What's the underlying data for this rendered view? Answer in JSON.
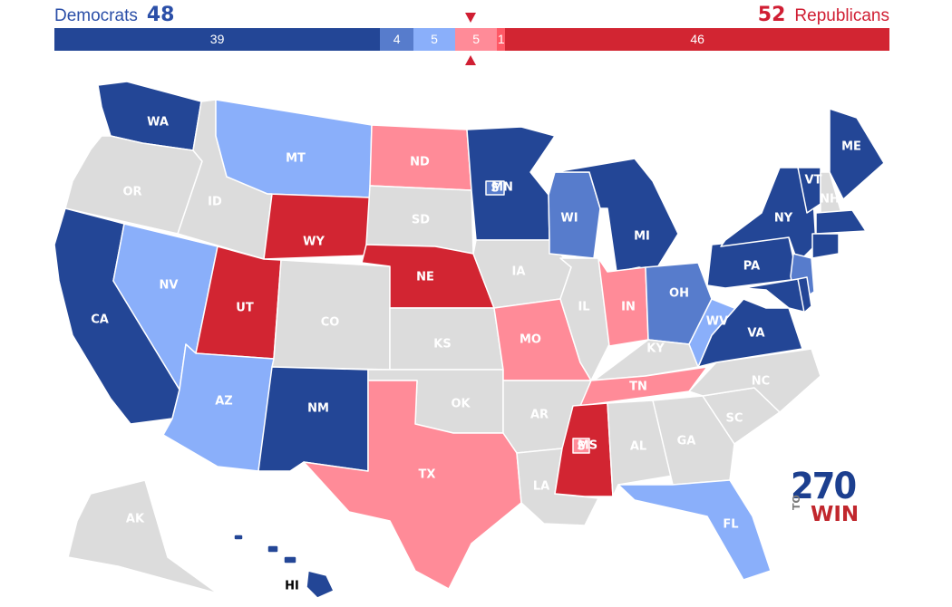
{
  "header": {
    "dem_label": "Democrats",
    "dem_total": "48",
    "rep_total": "52",
    "rep_label": "Republicans"
  },
  "colors": {
    "safe_dem": "#234696",
    "likely_dem": "#577ccc",
    "lean_dem": "#8aaffa",
    "tossup": "#dcdcdc",
    "lean_rep": "#ff8b98",
    "likely_rep": "#ff5865",
    "safe_rep": "#d22532",
    "text_dem": "#2b4fa8",
    "text_rep": "#d01e33"
  },
  "bar": [
    {
      "value": 39,
      "label": "39",
      "rating": "safe_dem"
    },
    {
      "value": 4,
      "label": "4",
      "rating": "likely_dem"
    },
    {
      "value": 5,
      "label": "5",
      "rating": "lean_dem"
    },
    {
      "value": 5,
      "label": "5",
      "rating": "lean_rep"
    },
    {
      "value": 1,
      "label": "1",
      "rating": "likely_rep"
    },
    {
      "value": 46,
      "label": "46",
      "rating": "safe_rep"
    }
  ],
  "states": [
    {
      "code": "WA",
      "label": "WA",
      "rating": "safe_dem"
    },
    {
      "code": "OR",
      "label": "OR",
      "rating": "tossup"
    },
    {
      "code": "CA",
      "label": "CA",
      "rating": "safe_dem"
    },
    {
      "code": "ID",
      "label": "ID",
      "rating": "tossup"
    },
    {
      "code": "NV",
      "label": "NV",
      "rating": "lean_dem"
    },
    {
      "code": "MT",
      "label": "MT",
      "rating": "lean_dem"
    },
    {
      "code": "WY",
      "label": "WY",
      "rating": "safe_rep"
    },
    {
      "code": "UT",
      "label": "UT",
      "rating": "safe_rep"
    },
    {
      "code": "AZ",
      "label": "AZ",
      "rating": "lean_dem"
    },
    {
      "code": "CO",
      "label": "CO",
      "rating": "tossup"
    },
    {
      "code": "NM",
      "label": "NM",
      "rating": "safe_dem"
    },
    {
      "code": "ND",
      "label": "ND",
      "rating": "lean_rep"
    },
    {
      "code": "SD",
      "label": "SD",
      "rating": "tossup"
    },
    {
      "code": "NE",
      "label": "NE",
      "rating": "safe_rep"
    },
    {
      "code": "KS",
      "label": "KS",
      "rating": "tossup"
    },
    {
      "code": "OK",
      "label": "OK",
      "rating": "tossup"
    },
    {
      "code": "TX",
      "label": "TX",
      "rating": "lean_rep"
    },
    {
      "code": "MN",
      "label": "MN",
      "rating": "safe_dem"
    },
    {
      "code": "IA",
      "label": "IA",
      "rating": "tossup"
    },
    {
      "code": "MO",
      "label": "MO",
      "rating": "lean_rep"
    },
    {
      "code": "AR",
      "label": "AR",
      "rating": "tossup"
    },
    {
      "code": "LA",
      "label": "LA",
      "rating": "tossup"
    },
    {
      "code": "WI",
      "label": "WI",
      "rating": "likely_dem"
    },
    {
      "code": "IL",
      "label": "IL",
      "rating": "tossup"
    },
    {
      "code": "MI",
      "label": "MI",
      "rating": "safe_dem"
    },
    {
      "code": "IN",
      "label": "IN",
      "rating": "lean_rep"
    },
    {
      "code": "OH",
      "label": "OH",
      "rating": "likely_dem"
    },
    {
      "code": "KY",
      "label": "KY",
      "rating": "tossup"
    },
    {
      "code": "TN",
      "label": "TN",
      "rating": "lean_rep"
    },
    {
      "code": "MS",
      "label": "MS",
      "rating": "safe_rep"
    },
    {
      "code": "AL",
      "label": "AL",
      "rating": "tossup"
    },
    {
      "code": "GA",
      "label": "GA",
      "rating": "tossup"
    },
    {
      "code": "FL",
      "label": "FL",
      "rating": "lean_dem"
    },
    {
      "code": "SC",
      "label": "SC",
      "rating": "tossup"
    },
    {
      "code": "NC",
      "label": "NC",
      "rating": "tossup"
    },
    {
      "code": "VA",
      "label": "VA",
      "rating": "safe_dem"
    },
    {
      "code": "WV",
      "label": "WV",
      "rating": "lean_dem"
    },
    {
      "code": "PA",
      "label": "PA",
      "rating": "safe_dem"
    },
    {
      "code": "NY",
      "label": "NY",
      "rating": "safe_dem"
    },
    {
      "code": "VT",
      "label": "VT",
      "rating": "safe_dem"
    },
    {
      "code": "NH",
      "label": "NH",
      "rating": "tossup"
    },
    {
      "code": "ME",
      "label": "ME",
      "rating": "safe_dem"
    },
    {
      "code": "MA",
      "label": "",
      "rating": "safe_dem"
    },
    {
      "code": "CT",
      "label": "",
      "rating": "safe_dem"
    },
    {
      "code": "NJ",
      "label": "",
      "rating": "likely_dem"
    },
    {
      "code": "MD",
      "label": "",
      "rating": "safe_dem"
    },
    {
      "code": "DE",
      "label": "",
      "rating": "safe_dem"
    },
    {
      "code": "AK",
      "label": "AK",
      "rating": "tossup"
    },
    {
      "code": "HI",
      "label": "HI",
      "rating": "safe_dem"
    }
  ],
  "specials": [
    {
      "code": "MN-S",
      "label": "S",
      "rating": "likely_dem"
    },
    {
      "code": "MS-S",
      "label": "S",
      "rating": "lean_rep"
    }
  ],
  "logo": {
    "number": "270",
    "to": "TO",
    "win": "WIN"
  }
}
